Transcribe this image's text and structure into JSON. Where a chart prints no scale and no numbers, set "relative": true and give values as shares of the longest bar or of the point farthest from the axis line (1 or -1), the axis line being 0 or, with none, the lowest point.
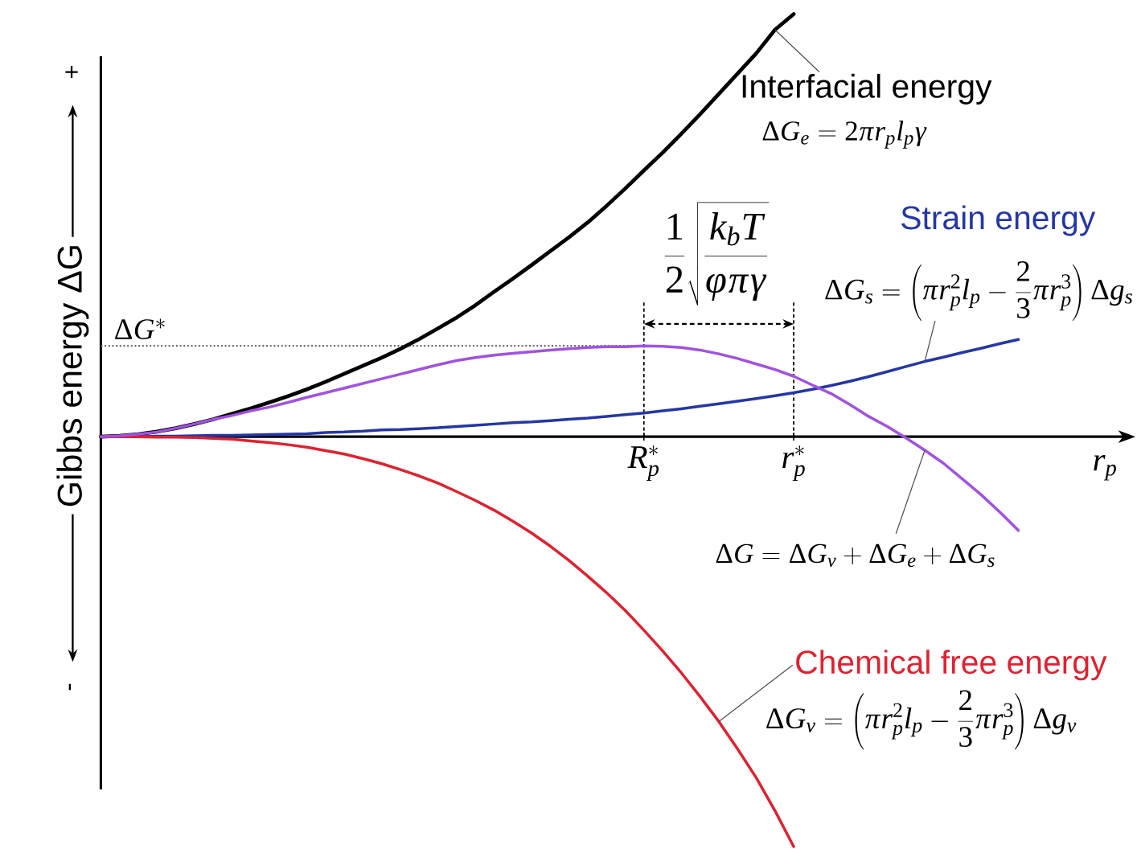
{
  "chart_data": {
    "type": "line",
    "relative": true,
    "categories": [
      null,
      null,
      null,
      null,
      null,
      null,
      null,
      null,
      null,
      null,
      null,
      null,
      null,
      null,
      null,
      null,
      null,
      null,
      null,
      null,
      null,
      null,
      null,
      null,
      null,
      null,
      null,
      null,
      null,
      "R_{p}^{*}",
      null,
      null,
      null,
      null,
      null,
      null,
      null,
      "r_{p}^{*}",
      null,
      null,
      null,
      null,
      null,
      null,
      null,
      null,
      null,
      null,
      null,
      null,
      null,
      null,
      null,
      null,
      null,
      null
    ],
    "xlabel": "r_{p}",
    "ylabel": "Gibbs energy ΔG",
    "series": [
      {
        "name": "Interfacial energy",
        "color": "#000000",
        "values": [
          0,
          0.002,
          0.006,
          0.012,
          0.02,
          0.03,
          0.041,
          0.054,
          0.067,
          0.081,
          0.096,
          0.112,
          0.13,
          0.149,
          0.168,
          0.187,
          0.208,
          0.231,
          0.256,
          0.282,
          0.311,
          0.343,
          0.374,
          0.406,
          0.439,
          0.472,
          0.507,
          0.546,
          0.587,
          0.63,
          0.672,
          0.717,
          0.763,
          0.811,
          0.859,
          0.907,
          0.963,
          1.0,
          null,
          null,
          null,
          null,
          null,
          null,
          null,
          null,
          null,
          null,
          null,
          null,
          null,
          null,
          null,
          null,
          null,
          null
        ]
      },
      {
        "name": "Strain energy",
        "color": "#2536a6",
        "values": [
          0,
          0,
          0,
          0.001,
          0.001,
          0.002,
          0.003,
          0.003,
          0.004,
          0.005,
          0.006,
          0.007,
          0.01,
          0.011,
          0.013,
          0.016,
          0.017,
          0.019,
          0.021,
          0.024,
          0.027,
          0.03,
          0.033,
          0.035,
          0.038,
          0.041,
          0.044,
          0.048,
          0.052,
          0.056,
          0.061,
          0.066,
          0.072,
          0.078,
          0.084,
          0.09,
          0.097,
          0.104,
          0.112,
          0.121,
          0.131,
          0.142,
          0.154,
          0.166,
          0.178,
          0.188,
          0.199,
          0.209,
          0.22,
          0.23,
          null,
          null,
          null,
          null,
          null,
          null
        ]
      },
      {
        "name": "Chemical free energy",
        "color": "#de2230",
        "values": [
          0,
          0,
          0,
          -0.001,
          -0.001,
          -0.002,
          -0.004,
          -0.006,
          -0.01,
          -0.014,
          -0.019,
          -0.025,
          -0.033,
          -0.041,
          -0.052,
          -0.064,
          -0.078,
          -0.093,
          -0.11,
          -0.13,
          -0.151,
          -0.174,
          -0.2,
          -0.228,
          -0.259,
          -0.293,
          -0.33,
          -0.369,
          -0.411,
          -0.458,
          -0.507,
          -0.559,
          -0.615,
          -0.674,
          -0.739,
          -0.807,
          -0.885,
          -0.97,
          null,
          null,
          null,
          null,
          null,
          null,
          null,
          null,
          null,
          null,
          null,
          null,
          null,
          null,
          null,
          null,
          null,
          null
        ]
      },
      {
        "color": "#a052e0",
        "values": [
          0,
          0.002,
          0.006,
          0.011,
          0.02,
          0.03,
          0.041,
          0.05,
          0.061,
          0.07,
          0.081,
          0.093,
          0.104,
          0.115,
          0.126,
          0.137,
          0.148,
          0.159,
          0.17,
          0.18,
          0.187,
          0.193,
          0.197,
          0.201,
          0.205,
          0.208,
          0.211,
          0.213,
          0.213,
          0.215,
          0.214,
          0.211,
          0.205,
          0.196,
          0.185,
          0.172,
          0.159,
          0.143,
          0.122,
          0.102,
          0.076,
          0.048,
          0.024,
          -0.003,
          -0.032,
          -0.063,
          -0.1,
          -0.137,
          -0.178,
          -0.222,
          null,
          null,
          null,
          null,
          null,
          null
        ]
      }
    ],
    "ref_lines": [
      {
        "axis": "y",
        "value": 0.215,
        "label": "\\Delta G^{*}",
        "line_style": "dotted",
        "color": "#666666"
      },
      {
        "axis": "x",
        "value": "R_{p}^{*}",
        "line_style": "dashed",
        "color": "#000000"
      },
      {
        "axis": "x",
        "value": "r_{p}^{*}",
        "line_style": "dashed",
        "color": "#000000"
      }
    ],
    "annotations": [
      "+",
      "-",
      "\\Delta G_{e}=2\\pi r_{p}l_{p}\\gamma",
      "\\Delta G_{s}=\\left(\\pi r_{p}^{2}l_{p}-\\frac{2}{3}\\pi r_{p}^{3}\\right)\\Delta g_{s}",
      "\\Delta G_{v}=\\left(\\pi r_{p}^{2}l_{p}-\\frac{2}{3}\\pi r_{p}^{3}\\right)\\Delta g_{v}",
      "\\Delta G=\\Delta G_{v}+\\Delta G_{e}+\\Delta G_{s}",
      "\\frac{1}{2}\\sqrt{\\frac{k_{b}T}{\\phi\\pi\\gamma}}"
    ]
  }
}
